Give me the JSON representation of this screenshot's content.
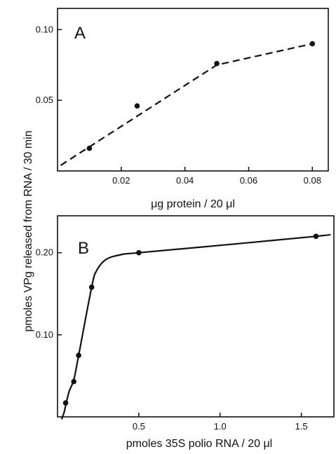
{
  "ylabel": "pmoles VPg released from RNA / 30 min",
  "chart_data": [
    {
      "type": "line",
      "panel_label": "A",
      "xlabel": "μg protein / 20 μl",
      "xlim": [
        0,
        0.085
      ],
      "ylim": [
        0,
        0.115
      ],
      "x_ticks": [
        0.02,
        0.04,
        0.06,
        0.08
      ],
      "x_tick_labels": [
        "0.02",
        "0.04",
        "0.06",
        "0.08"
      ],
      "y_ticks": [
        0.05,
        0.1
      ],
      "y_tick_labels": [
        "0.05",
        "0.10"
      ],
      "line_style": "dashed",
      "series": [
        {
          "points": [
            [
              0.01,
              0.016
            ],
            [
              0.025,
              0.046
            ],
            [
              0.05,
              0.076
            ],
            [
              0.08,
              0.09
            ]
          ],
          "curve": [
            [
              0.001,
              0.004
            ],
            [
              0.05,
              0.075
            ],
            [
              0.08,
              0.09
            ]
          ]
        }
      ]
    },
    {
      "type": "line",
      "panel_label": "B",
      "xlabel": "pmoles 35S polio RNA / 20 μl",
      "xlim": [
        0,
        1.7
      ],
      "ylim": [
        0,
        0.245
      ],
      "x_ticks": [
        0.5,
        1.0,
        1.5
      ],
      "x_tick_labels": [
        "0.5",
        "1.0",
        "1.5"
      ],
      "y_ticks": [
        0.1,
        0.2
      ],
      "y_tick_labels": [
        "0.10",
        "0.20"
      ],
      "line_style": "solid",
      "series": [
        {
          "points": [
            [
              0.05,
              0.017
            ],
            [
              0.1,
              0.043
            ],
            [
              0.13,
              0.075
            ],
            [
              0.21,
              0.158
            ],
            [
              0.5,
              0.2
            ],
            [
              1.59,
              0.22
            ]
          ],
          "curve": [
            [
              0.04,
              0.005
            ],
            [
              0.07,
              0.03
            ],
            [
              0.1,
              0.045
            ],
            [
              0.13,
              0.075
            ],
            [
              0.21,
              0.158
            ],
            [
              0.24,
              0.178
            ],
            [
              0.3,
              0.192
            ],
            [
              0.4,
              0.198
            ],
            [
              0.5,
              0.2
            ],
            [
              1.0,
              0.209
            ],
            [
              1.59,
              0.22
            ],
            [
              1.68,
              0.222
            ]
          ]
        }
      ]
    }
  ]
}
